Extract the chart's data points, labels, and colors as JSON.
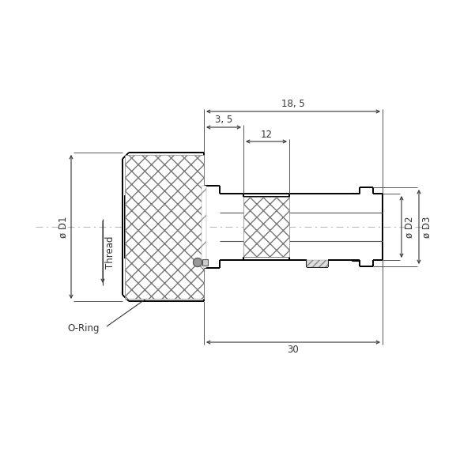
{
  "bg_color": "#ffffff",
  "line_color": "#000000",
  "dim_color": "#333333",
  "dim_18_5_label": "18, 5",
  "dim_3_5_label": "3, 5",
  "dim_12_label": "12",
  "dim_30_label": "30",
  "dim_D1_label": "ø D1",
  "dim_D2_label": "ø D2",
  "dim_D3_label": "ø D3",
  "dim_Thread_label": "Thread",
  "dim_oring_label": "O-Ring"
}
